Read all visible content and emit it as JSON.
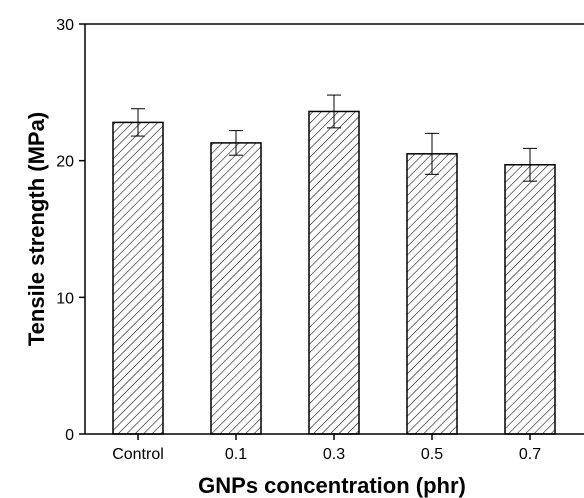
{
  "chart_data": {
    "type": "bar",
    "title": "",
    "xlabel": "GNPs concentration (phr)",
    "ylabel": "Tensile strength (MPa)",
    "categories": [
      "Control",
      "0.1",
      "0.3",
      "0.5",
      "0.7"
    ],
    "values": [
      22.8,
      21.3,
      23.6,
      20.5,
      19.7
    ],
    "errors": [
      1.0,
      0.9,
      1.2,
      1.5,
      1.2
    ],
    "ylim": [
      0,
      30
    ],
    "yticks": [
      0,
      10,
      20,
      30
    ],
    "grid": false,
    "bar_fill": "diagonal-hatch",
    "colors": {
      "bar_edge": "#000000",
      "hatch": "#000000",
      "background": "#ffffff"
    }
  }
}
